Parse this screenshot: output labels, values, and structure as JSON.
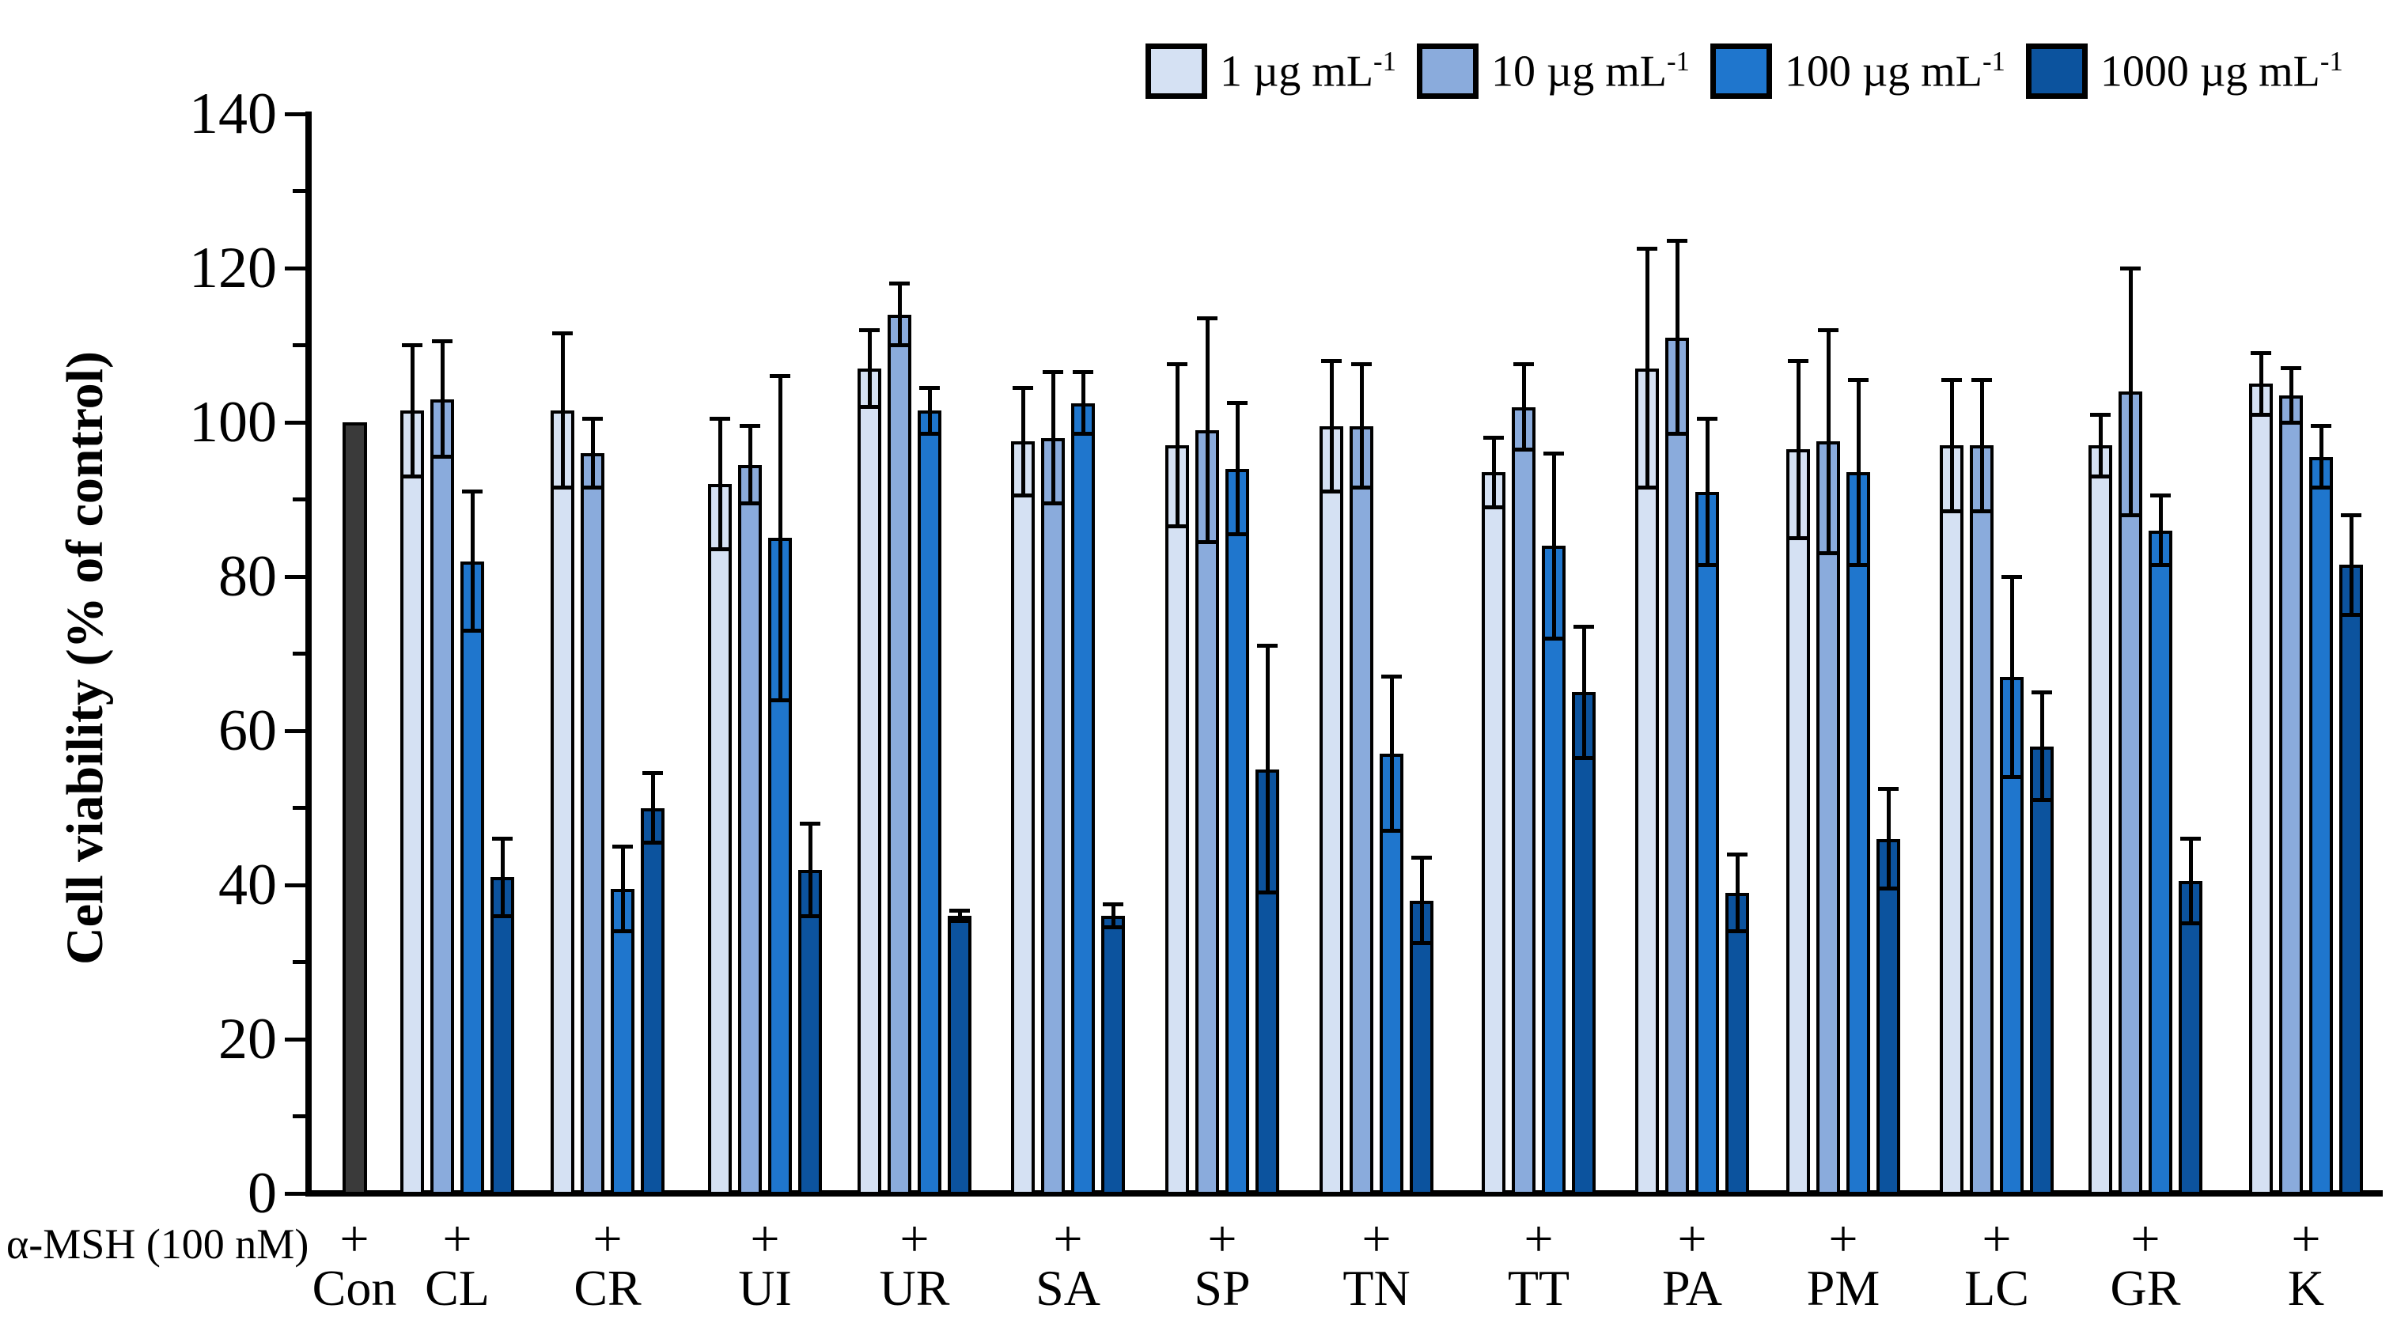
{
  "labels": {
    "y_axis_title": "Cell viability (% of control)",
    "alpha_msh": "α-MSH (100 nM)",
    "plus": "+"
  },
  "colors": {
    "background": "#ffffff",
    "axis": "#000000",
    "control_bar": "#3a3a3a",
    "series": [
      "#d5e1f3",
      "#8aabdc",
      "#1f76cd",
      "#0c539e"
    ]
  },
  "legend": [
    {
      "text": "1 µg mL",
      "sup": "-1",
      "color": "#d5e1f3"
    },
    {
      "text": "10 µg mL",
      "sup": "-1",
      "color": "#8aabdc"
    },
    {
      "text": "100 µg mL",
      "sup": "-1",
      "color": "#1f76cd"
    },
    {
      "text": "1000 µg mL",
      "sup": "-1",
      "color": "#0c539e"
    }
  ],
  "chart_data": {
    "type": "bar",
    "title": "",
    "ylabel": "Cell viability (% of control)",
    "ylim": [
      0,
      140
    ],
    "yticks": [
      0,
      20,
      40,
      60,
      80,
      100,
      120,
      140
    ],
    "yminor_step": 10,
    "grid": false,
    "legend_position": "top-right",
    "categories": [
      "Con",
      "CL",
      "CR",
      "UI",
      "UR",
      "SA",
      "SP",
      "TN",
      "TT",
      "PA",
      "PM",
      "LC",
      "GR",
      "K"
    ],
    "alpha_msh_row": [
      "+",
      "+",
      "+",
      "+",
      "+",
      "+",
      "+",
      "+",
      "+",
      "+",
      "+",
      "+",
      "+",
      "+"
    ],
    "control": {
      "category": "Con",
      "value": 100,
      "error": 0
    },
    "series_categories": [
      "CL",
      "CR",
      "UI",
      "UR",
      "SA",
      "SP",
      "TN",
      "TT",
      "PA",
      "PM",
      "LC",
      "GR",
      "K"
    ],
    "series": [
      {
        "name": "1 µg mL-1",
        "values": [
          101.5,
          101.5,
          92,
          107,
          97.5,
          97,
          99.5,
          93.5,
          107,
          96.5,
          97,
          97,
          105
        ],
        "errors": [
          8.5,
          10,
          8.5,
          5,
          7,
          10.5,
          8.5,
          4.5,
          15.5,
          11.5,
          8.5,
          4,
          4
        ]
      },
      {
        "name": "10 µg mL-1",
        "values": [
          103,
          96,
          94.5,
          114,
          98,
          99,
          99.5,
          102,
          111,
          97.5,
          97,
          104,
          103.5
        ],
        "errors": [
          7.5,
          4.5,
          5,
          4,
          8.5,
          14.5,
          8,
          5.5,
          12.5,
          14.5,
          8.5,
          16,
          3.5
        ]
      },
      {
        "name": "100 µg mL-1",
        "values": [
          82,
          39.5,
          85,
          101.5,
          102.5,
          94,
          57,
          84,
          91,
          93.5,
          67,
          86,
          95.5
        ],
        "errors": [
          9,
          5.5,
          21,
          3,
          4,
          8.5,
          10,
          12,
          9.5,
          12,
          13,
          4.5,
          4
        ]
      },
      {
        "name": "1000 µg mL-1",
        "values": [
          41,
          50,
          42,
          36,
          36,
          55,
          38,
          65,
          39,
          46,
          58,
          40.5,
          81.5
        ],
        "errors": [
          5,
          4.5,
          6,
          0.7,
          1.5,
          16,
          5.5,
          8.5,
          5,
          6.5,
          7,
          5.5,
          6.5
        ]
      }
    ]
  }
}
